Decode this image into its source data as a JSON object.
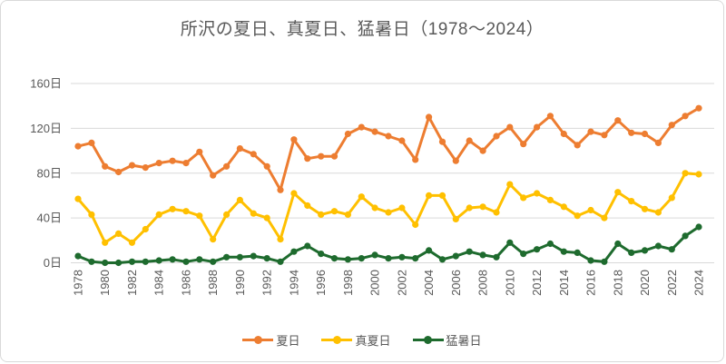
{
  "chart_data": {
    "type": "line",
    "title": "所沢の夏日、真夏日、猛暑日（1978～2024）",
    "x": [
      1978,
      1979,
      1980,
      1981,
      1982,
      1983,
      1984,
      1985,
      1986,
      1987,
      1988,
      1989,
      1990,
      1991,
      1992,
      1993,
      1994,
      1995,
      1996,
      1997,
      1998,
      1999,
      2000,
      2001,
      2002,
      2003,
      2004,
      2005,
      2006,
      2007,
      2008,
      2009,
      2010,
      2011,
      2012,
      2013,
      2014,
      2015,
      2016,
      2017,
      2018,
      2019,
      2020,
      2021,
      2022,
      2023,
      2024
    ],
    "x_tick_step": 2,
    "y_ticks": [
      0,
      40,
      80,
      120,
      160
    ],
    "y_tick_suffix": "日",
    "ylim": [
      0,
      160
    ],
    "grid": true,
    "legend_position": "bottom",
    "series": [
      {
        "name": "夏日",
        "color": "#ED7D31",
        "values": [
          104,
          107,
          86,
          81,
          87,
          85,
          89,
          91,
          89,
          99,
          78,
          86,
          102,
          97,
          86,
          65,
          110,
          93,
          95,
          95,
          115,
          121,
          117,
          113,
          109,
          92,
          130,
          108,
          91,
          109,
          100,
          113,
          121,
          106,
          121,
          131,
          115,
          105,
          117,
          114,
          127,
          116,
          115,
          107,
          123,
          131,
          138
        ]
      },
      {
        "name": "真夏日",
        "color": "#FFC000",
        "values": [
          57,
          43,
          18,
          26,
          18,
          30,
          43,
          48,
          46,
          42,
          21,
          43,
          56,
          44,
          40,
          21,
          62,
          51,
          43,
          46,
          43,
          59,
          49,
          45,
          49,
          34,
          60,
          60,
          39,
          49,
          50,
          45,
          70,
          58,
          62,
          56,
          50,
          42,
          47,
          40,
          63,
          55,
          48,
          45,
          58,
          80,
          79
        ]
      },
      {
        "name": "猛暑日",
        "color": "#1E6B2E",
        "values": [
          6,
          1,
          0,
          0,
          1,
          1,
          2,
          3,
          1,
          3,
          1,
          5,
          5,
          6,
          4,
          1,
          10,
          15,
          8,
          4,
          3,
          4,
          7,
          4,
          5,
          4,
          11,
          3,
          6,
          10,
          7,
          5,
          18,
          8,
          12,
          17,
          10,
          9,
          2,
          1,
          17,
          9,
          11,
          15,
          12,
          24,
          32
        ]
      }
    ]
  },
  "style": {
    "gridline_color": "#d9d9d9",
    "axis_text_color": "#595959",
    "title_color": "#595959",
    "background": "#ffffff"
  }
}
